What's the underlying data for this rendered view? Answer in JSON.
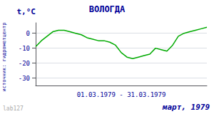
{
  "chart_data": {
    "type": "line",
    "title": "ВОЛОГДА",
    "ylabel": "t,°C",
    "xlabel": "01.03.1979 - 31.03.1979",
    "annotations": [
      "март, 1979",
      "источник: гидрометцентр",
      "lab127"
    ],
    "x": [
      1,
      2,
      3,
      4,
      5,
      6,
      7,
      8,
      9,
      10,
      11,
      12,
      13,
      14,
      15,
      16,
      17,
      18,
      19,
      20,
      21,
      22,
      23,
      24,
      25,
      26,
      27,
      28,
      29,
      30,
      31
    ],
    "values": [
      -9,
      -5,
      -2,
      1,
      2,
      2,
      1,
      0,
      -1,
      -3,
      -4,
      -5,
      -5,
      -6,
      -8,
      -13,
      -16,
      -17,
      -16,
      -15,
      -14,
      -10,
      -11,
      -12,
      -8,
      -2,
      0,
      1,
      2,
      3,
      4
    ],
    "color": "#00aa00",
    "xlim": [
      1,
      31
    ],
    "xticks": [],
    "ylim": [
      -35,
      7
    ],
    "yticks": [
      0,
      -10,
      -20,
      -30
    ],
    "grid": true,
    "tick_labels": "y"
  }
}
